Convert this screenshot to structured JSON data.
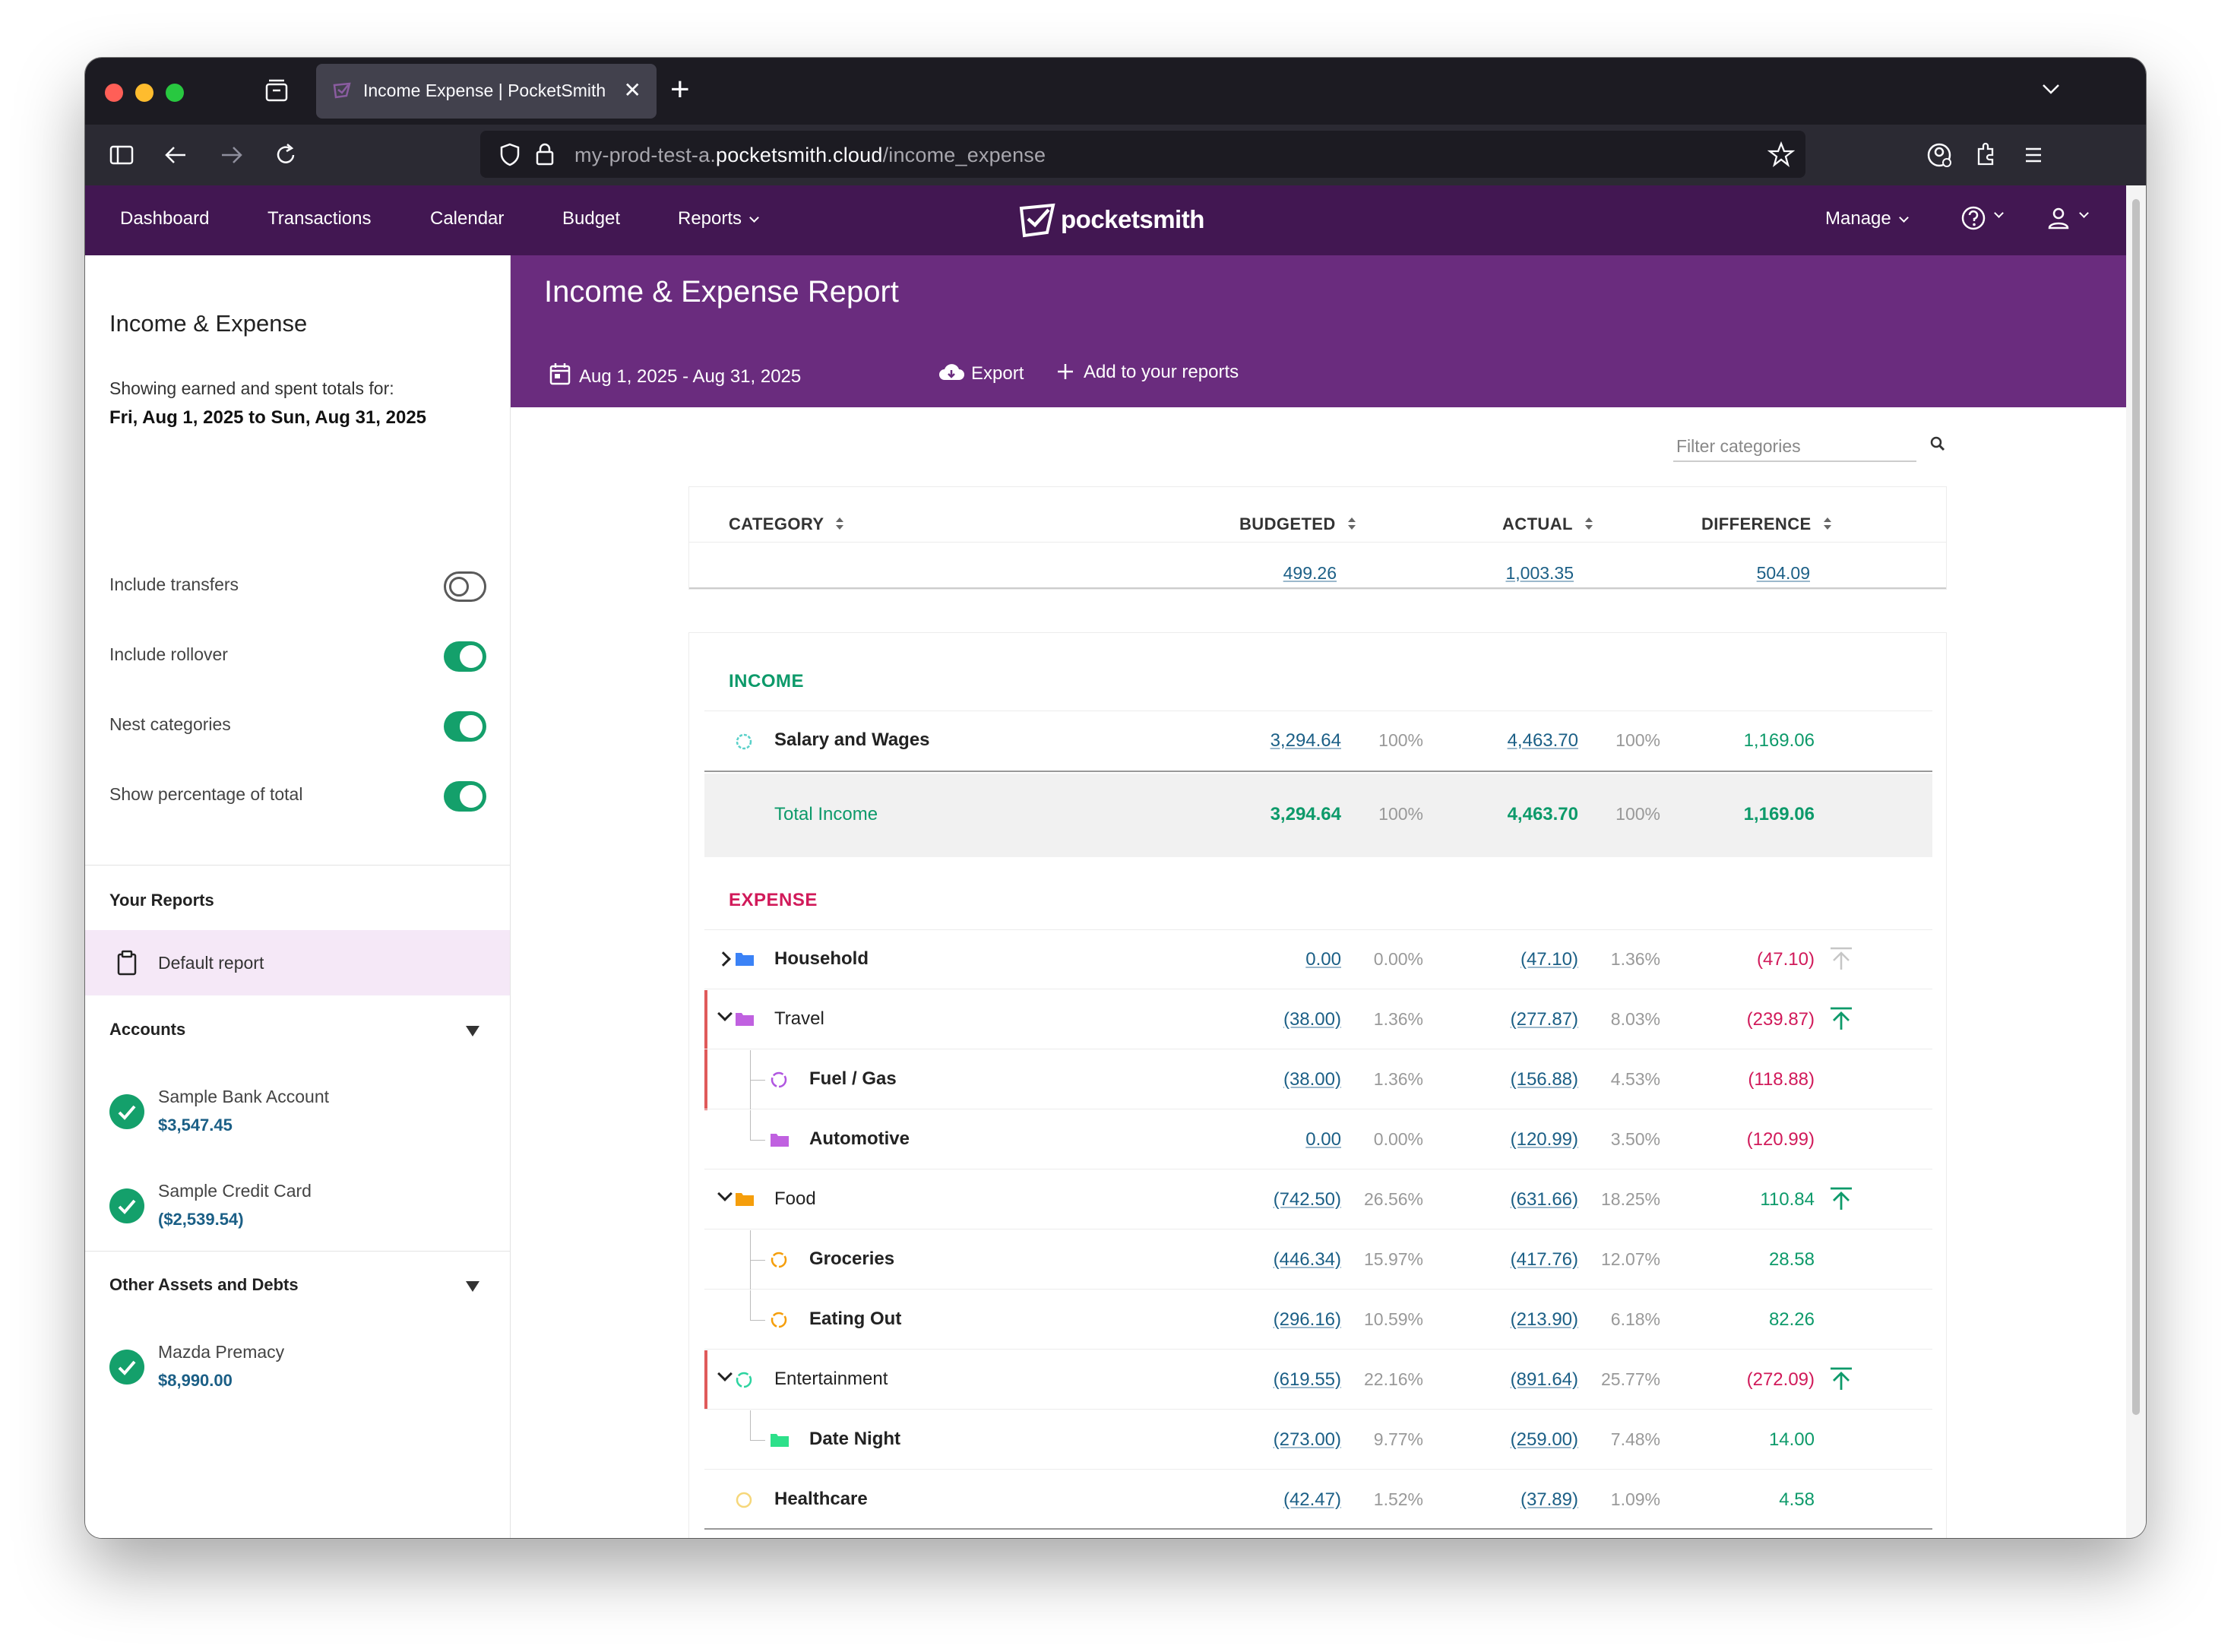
{
  "browser": {
    "tab_title": "Income Expense | PocketSmith",
    "url_prefix": "my-prod-test-a.",
    "url_domain": "pocketsmith.cloud",
    "url_path": "/income_expense"
  },
  "app_nav": {
    "items": [
      "Dashboard",
      "Transactions",
      "Calendar",
      "Budget",
      "Reports"
    ],
    "logo": "pocketsmith",
    "manage": "Manage"
  },
  "sidebar": {
    "title": "Income & Expense",
    "desc": "Showing earned and spent totals for:",
    "range": "Fri, Aug 1, 2025 to Sun, Aug 31, 2025",
    "toggles": [
      {
        "label": "Include transfers",
        "on": false
      },
      {
        "label": "Include rollover",
        "on": true
      },
      {
        "label": "Nest categories",
        "on": true
      },
      {
        "label": "Show percentage of total",
        "on": true
      }
    ],
    "your_reports": "Your Reports",
    "default_report": "Default report",
    "accounts_head": "Accounts",
    "accounts": [
      {
        "name": "Sample Bank Account",
        "balance": "$3,547.45"
      },
      {
        "name": "Sample Credit Card",
        "balance": "($2,539.54)"
      }
    ],
    "other_head": "Other Assets and Debts",
    "other": [
      {
        "name": "Mazda Premacy",
        "balance": "$8,990.00"
      }
    ]
  },
  "report": {
    "title": "Income & Expense Report",
    "date_range": "Aug 1, 2025 - Aug 31, 2025",
    "export": "Export",
    "add": "Add to your reports",
    "filter_placeholder": "Filter categories",
    "headers": {
      "category": "CATEGORY",
      "budgeted": "BUDGETED",
      "actual": "ACTUAL",
      "difference": "DIFFERENCE"
    },
    "totals": {
      "budgeted": "499.26",
      "actual": "1,003.35",
      "difference": "504.09"
    },
    "income_label": "INCOME",
    "income_rows": [
      {
        "name": "Salary and Wages",
        "budgeted": "3,294.64",
        "bpct": "100%",
        "actual": "4,463.70",
        "apct": "100%",
        "diff": "1,169.06"
      }
    ],
    "income_total": {
      "name": "Total Income",
      "budgeted": "3,294.64",
      "bpct": "100%",
      "actual": "4,463.70",
      "apct": "100%",
      "diff": "1,169.06"
    },
    "expense_label": "EXPENSE",
    "expense_rows": [
      {
        "name": "Household",
        "budgeted": "0.00",
        "bpct": "0.00%",
        "actual": "(47.10)",
        "apct": "1.36%",
        "diff": "(47.10)"
      },
      {
        "name": "Travel",
        "budgeted": "(38.00)",
        "bpct": "1.36%",
        "actual": "(277.87)",
        "apct": "8.03%",
        "diff": "(239.87)"
      },
      {
        "name": "Fuel / Gas",
        "budgeted": "(38.00)",
        "bpct": "1.36%",
        "actual": "(156.88)",
        "apct": "4.53%",
        "diff": "(118.88)"
      },
      {
        "name": "Automotive",
        "budgeted": "0.00",
        "bpct": "0.00%",
        "actual": "(120.99)",
        "apct": "3.50%",
        "diff": "(120.99)"
      },
      {
        "name": "Food",
        "budgeted": "(742.50)",
        "bpct": "26.56%",
        "actual": "(631.66)",
        "apct": "18.25%",
        "diff": "110.84"
      },
      {
        "name": "Groceries",
        "budgeted": "(446.34)",
        "bpct": "15.97%",
        "actual": "(417.76)",
        "apct": "12.07%",
        "diff": "28.58"
      },
      {
        "name": "Eating Out",
        "budgeted": "(296.16)",
        "bpct": "10.59%",
        "actual": "(213.90)",
        "apct": "6.18%",
        "diff": "82.26"
      },
      {
        "name": "Entertainment",
        "budgeted": "(619.55)",
        "bpct": "22.16%",
        "actual": "(891.64)",
        "apct": "25.77%",
        "diff": "(272.09)"
      },
      {
        "name": "Date Night",
        "budgeted": "(273.00)",
        "bpct": "9.77%",
        "actual": "(259.00)",
        "apct": "7.48%",
        "diff": "14.00"
      },
      {
        "name": "Healthcare",
        "budgeted": "(42.47)",
        "bpct": "1.52%",
        "actual": "(37.89)",
        "apct": "1.09%",
        "diff": "4.58"
      }
    ]
  },
  "colors": {
    "header": "#421752",
    "report_header": "#6a2c7e",
    "positive": "#0d9a6a",
    "negative": "#d11a5a",
    "link": "#1b5f86"
  }
}
